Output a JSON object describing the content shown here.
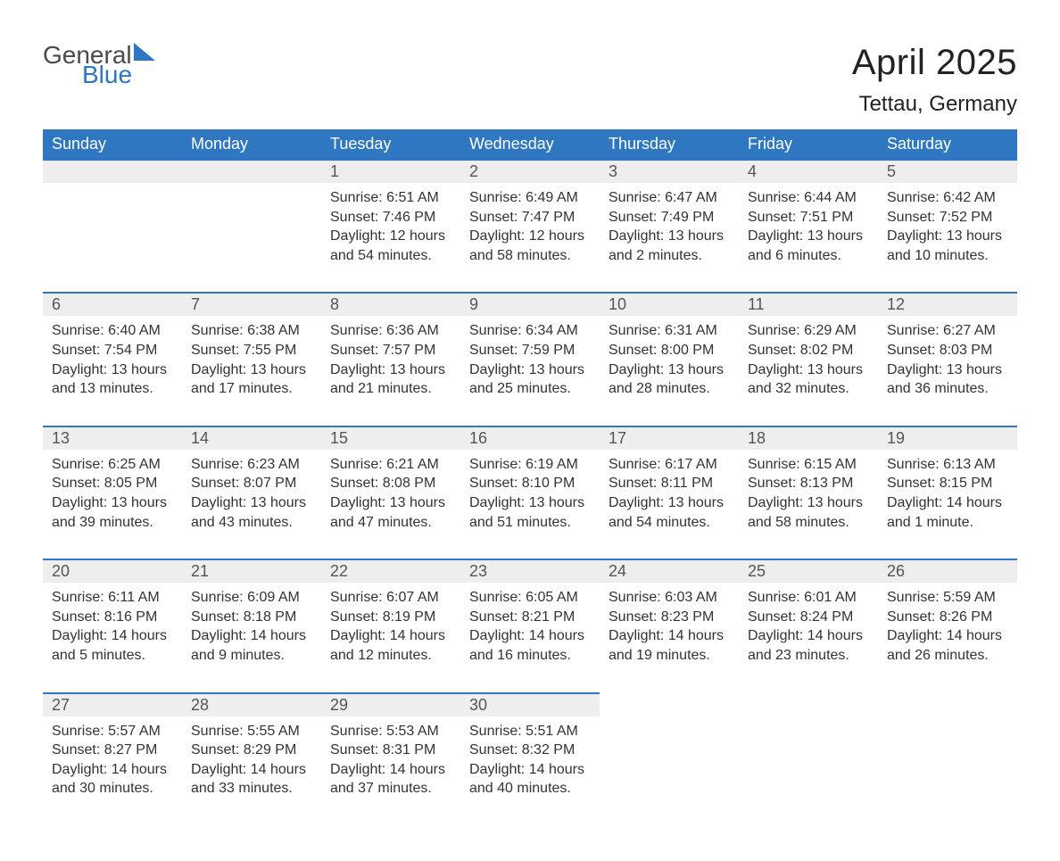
{
  "branding": {
    "name_part1": "General",
    "name_part2": "Blue",
    "color_primary": "#2f77c1",
    "color_text_dark": "#4a4a4a"
  },
  "heading": {
    "month_title": "April 2025",
    "location": "Tettau, Germany"
  },
  "calendar": {
    "header_bg": "#2f77c1",
    "header_fg": "#ffffff",
    "row_divider_color": "#2f77c1",
    "daynum_bg": "#eeeeee",
    "body_text_color": "#333333",
    "font_family": "Arial",
    "day_headers": [
      "Sunday",
      "Monday",
      "Tuesday",
      "Wednesday",
      "Thursday",
      "Friday",
      "Saturday"
    ],
    "weeks": [
      [
        {
          "blank": true
        },
        {
          "blank": true
        },
        {
          "day": "1",
          "sunrise": "Sunrise: 6:51 AM",
          "sunset": "Sunset: 7:46 PM",
          "daylight": "Daylight: 12 hours and 54 minutes."
        },
        {
          "day": "2",
          "sunrise": "Sunrise: 6:49 AM",
          "sunset": "Sunset: 7:47 PM",
          "daylight": "Daylight: 12 hours and 58 minutes."
        },
        {
          "day": "3",
          "sunrise": "Sunrise: 6:47 AM",
          "sunset": "Sunset: 7:49 PM",
          "daylight": "Daylight: 13 hours and 2 minutes."
        },
        {
          "day": "4",
          "sunrise": "Sunrise: 6:44 AM",
          "sunset": "Sunset: 7:51 PM",
          "daylight": "Daylight: 13 hours and 6 minutes."
        },
        {
          "day": "5",
          "sunrise": "Sunrise: 6:42 AM",
          "sunset": "Sunset: 7:52 PM",
          "daylight": "Daylight: 13 hours and 10 minutes."
        }
      ],
      [
        {
          "day": "6",
          "sunrise": "Sunrise: 6:40 AM",
          "sunset": "Sunset: 7:54 PM",
          "daylight": "Daylight: 13 hours and 13 minutes."
        },
        {
          "day": "7",
          "sunrise": "Sunrise: 6:38 AM",
          "sunset": "Sunset: 7:55 PM",
          "daylight": "Daylight: 13 hours and 17 minutes."
        },
        {
          "day": "8",
          "sunrise": "Sunrise: 6:36 AM",
          "sunset": "Sunset: 7:57 PM",
          "daylight": "Daylight: 13 hours and 21 minutes."
        },
        {
          "day": "9",
          "sunrise": "Sunrise: 6:34 AM",
          "sunset": "Sunset: 7:59 PM",
          "daylight": "Daylight: 13 hours and 25 minutes."
        },
        {
          "day": "10",
          "sunrise": "Sunrise: 6:31 AM",
          "sunset": "Sunset: 8:00 PM",
          "daylight": "Daylight: 13 hours and 28 minutes."
        },
        {
          "day": "11",
          "sunrise": "Sunrise: 6:29 AM",
          "sunset": "Sunset: 8:02 PM",
          "daylight": "Daylight: 13 hours and 32 minutes."
        },
        {
          "day": "12",
          "sunrise": "Sunrise: 6:27 AM",
          "sunset": "Sunset: 8:03 PM",
          "daylight": "Daylight: 13 hours and 36 minutes."
        }
      ],
      [
        {
          "day": "13",
          "sunrise": "Sunrise: 6:25 AM",
          "sunset": "Sunset: 8:05 PM",
          "daylight": "Daylight: 13 hours and 39 minutes."
        },
        {
          "day": "14",
          "sunrise": "Sunrise: 6:23 AM",
          "sunset": "Sunset: 8:07 PM",
          "daylight": "Daylight: 13 hours and 43 minutes."
        },
        {
          "day": "15",
          "sunrise": "Sunrise: 6:21 AM",
          "sunset": "Sunset: 8:08 PM",
          "daylight": "Daylight: 13 hours and 47 minutes."
        },
        {
          "day": "16",
          "sunrise": "Sunrise: 6:19 AM",
          "sunset": "Sunset: 8:10 PM",
          "daylight": "Daylight: 13 hours and 51 minutes."
        },
        {
          "day": "17",
          "sunrise": "Sunrise: 6:17 AM",
          "sunset": "Sunset: 8:11 PM",
          "daylight": "Daylight: 13 hours and 54 minutes."
        },
        {
          "day": "18",
          "sunrise": "Sunrise: 6:15 AM",
          "sunset": "Sunset: 8:13 PM",
          "daylight": "Daylight: 13 hours and 58 minutes."
        },
        {
          "day": "19",
          "sunrise": "Sunrise: 6:13 AM",
          "sunset": "Sunset: 8:15 PM",
          "daylight": "Daylight: 14 hours and 1 minute."
        }
      ],
      [
        {
          "day": "20",
          "sunrise": "Sunrise: 6:11 AM",
          "sunset": "Sunset: 8:16 PM",
          "daylight": "Daylight: 14 hours and 5 minutes."
        },
        {
          "day": "21",
          "sunrise": "Sunrise: 6:09 AM",
          "sunset": "Sunset: 8:18 PM",
          "daylight": "Daylight: 14 hours and 9 minutes."
        },
        {
          "day": "22",
          "sunrise": "Sunrise: 6:07 AM",
          "sunset": "Sunset: 8:19 PM",
          "daylight": "Daylight: 14 hours and 12 minutes."
        },
        {
          "day": "23",
          "sunrise": "Sunrise: 6:05 AM",
          "sunset": "Sunset: 8:21 PM",
          "daylight": "Daylight: 14 hours and 16 minutes."
        },
        {
          "day": "24",
          "sunrise": "Sunrise: 6:03 AM",
          "sunset": "Sunset: 8:23 PM",
          "daylight": "Daylight: 14 hours and 19 minutes."
        },
        {
          "day": "25",
          "sunrise": "Sunrise: 6:01 AM",
          "sunset": "Sunset: 8:24 PM",
          "daylight": "Daylight: 14 hours and 23 minutes."
        },
        {
          "day": "26",
          "sunrise": "Sunrise: 5:59 AM",
          "sunset": "Sunset: 8:26 PM",
          "daylight": "Daylight: 14 hours and 26 minutes."
        }
      ],
      [
        {
          "day": "27",
          "sunrise": "Sunrise: 5:57 AM",
          "sunset": "Sunset: 8:27 PM",
          "daylight": "Daylight: 14 hours and 30 minutes."
        },
        {
          "day": "28",
          "sunrise": "Sunrise: 5:55 AM",
          "sunset": "Sunset: 8:29 PM",
          "daylight": "Daylight: 14 hours and 33 minutes."
        },
        {
          "day": "29",
          "sunrise": "Sunrise: 5:53 AM",
          "sunset": "Sunset: 8:31 PM",
          "daylight": "Daylight: 14 hours and 37 minutes."
        },
        {
          "day": "30",
          "sunrise": "Sunrise: 5:51 AM",
          "sunset": "Sunset: 8:32 PM",
          "daylight": "Daylight: 14 hours and 40 minutes."
        },
        {
          "blank": true,
          "trailing": true
        },
        {
          "blank": true,
          "trailing": true
        },
        {
          "blank": true,
          "trailing": true
        }
      ]
    ]
  }
}
